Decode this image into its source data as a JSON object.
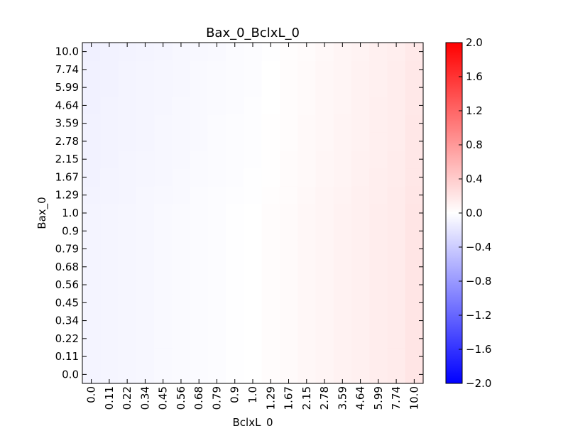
{
  "chart_data": {
    "type": "heatmap",
    "title": "Bax_0_BclxL_0",
    "xlabel": "BclxL_0",
    "ylabel": "Bax_0",
    "x_categories": [
      "0.0",
      "0.11",
      "0.22",
      "0.34",
      "0.45",
      "0.56",
      "0.68",
      "0.79",
      "0.9",
      "1.0",
      "1.29",
      "1.67",
      "2.15",
      "2.78",
      "3.59",
      "4.64",
      "5.99",
      "7.74",
      "10.0"
    ],
    "y_categories": [
      "0.0",
      "0.11",
      "0.22",
      "0.34",
      "0.45",
      "0.56",
      "0.68",
      "0.79",
      "0.9",
      "1.0",
      "1.29",
      "1.67",
      "2.15",
      "2.78",
      "3.59",
      "4.64",
      "5.99",
      "7.74",
      "10.0"
    ],
    "colorbar": {
      "colormap": "bwr",
      "vmin": -2.0,
      "vmax": 2.0,
      "tick_labels": [
        "2.0",
        "1.6",
        "1.2",
        "0.8",
        "0.4",
        "0.0",
        "−0.4",
        "−0.8",
        "−1.2",
        "−1.6",
        "−2.0"
      ],
      "tick_values": [
        2.0,
        1.6,
        1.2,
        0.8,
        0.4,
        0.0,
        -0.4,
        -0.8,
        -1.2,
        -1.6,
        -2.0
      ]
    },
    "column_values": [
      -0.09,
      -0.08,
      -0.07,
      -0.06,
      -0.05,
      -0.04,
      -0.03,
      -0.02,
      -0.01,
      0.0,
      0.02,
      0.04,
      0.06,
      0.08,
      0.1,
      0.12,
      0.14,
      0.16,
      0.2
    ],
    "row_offsets": [
      0.0,
      0.0,
      0.0,
      0.0,
      0.0,
      0.0,
      0.0,
      0.0,
      0.0,
      0.0,
      -0.005,
      -0.01,
      -0.012,
      -0.015,
      -0.015,
      -0.018,
      -0.02,
      -0.02,
      -0.025
    ]
  }
}
